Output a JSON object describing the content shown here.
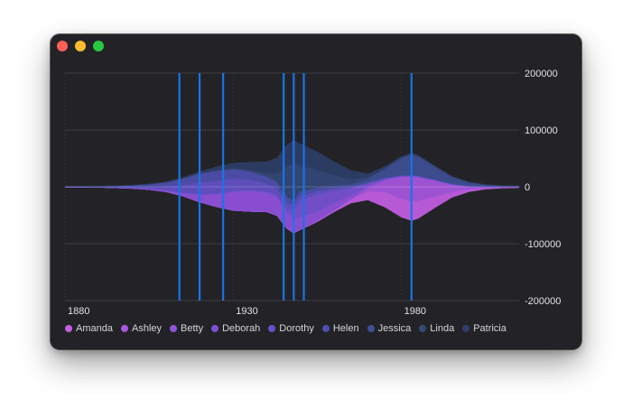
{
  "window": {
    "buttons": [
      "close",
      "minimize",
      "zoom"
    ]
  },
  "chart_data": {
    "type": "area",
    "subtype": "streamgraph",
    "x": [
      1880,
      1890,
      1900,
      1905,
      1910,
      1915,
      1920,
      1925,
      1930,
      1935,
      1940,
      1943,
      1946,
      1948,
      1950,
      1955,
      1960,
      1965,
      1970,
      1975,
      1980,
      1983,
      1985,
      1990,
      1995,
      2000,
      2005,
      2010,
      2015
    ],
    "ylim": [
      -200000,
      200000
    ],
    "xlim": [
      1880,
      2015
    ],
    "y_ticks": [
      "200000",
      "100000",
      "0",
      "-100000",
      "-200000"
    ],
    "y_tick_values": [
      200000,
      100000,
      0,
      -100000,
      -200000
    ],
    "x_ticks": [
      "1880",
      "1930",
      "1980"
    ],
    "x_tick_values": [
      1880,
      1930,
      1980
    ],
    "y_axis_position": "right",
    "grid": true,
    "legend_position": "bottom",
    "rules": [
      1914,
      1920,
      1927,
      1945,
      1948,
      1951,
      1983
    ],
    "rule_color": "#1a73e8",
    "series": [
      {
        "name": "Amanda",
        "color": "#c45de3",
        "values": [
          0,
          0,
          0,
          0,
          0,
          0,
          0,
          0,
          0,
          0,
          0,
          0,
          0,
          0,
          300,
          1500,
          2500,
          6000,
          15000,
          26000,
          32000,
          33000,
          30000,
          19000,
          9000,
          4000,
          1500,
          800,
          500
        ]
      },
      {
        "name": "Ashley",
        "color": "#a858e0",
        "values": [
          0,
          0,
          0,
          0,
          0,
          0,
          0,
          0,
          0,
          0,
          0,
          0,
          0,
          0,
          0,
          0,
          200,
          800,
          6000,
          20000,
          38000,
          44000,
          42000,
          28000,
          13000,
          5000,
          2000,
          800,
          500
        ]
      },
      {
        "name": "Betty",
        "color": "#9153dd",
        "values": [
          150,
          200,
          700,
          1400,
          2500,
          5500,
          13000,
          22000,
          33000,
          36000,
          33000,
          32000,
          28000,
          26000,
          22000,
          16000,
          12000,
          7000,
          3000,
          1800,
          1200,
          1000,
          900,
          700,
          500,
          400,
          300,
          250,
          200
        ]
      },
      {
        "name": "Deborah",
        "color": "#7a52d4",
        "values": [
          0,
          0,
          0,
          0,
          0,
          0,
          0,
          300,
          800,
          1500,
          3000,
          4000,
          6000,
          12000,
          28000,
          30000,
          22000,
          12000,
          4500,
          2000,
          1200,
          1000,
          900,
          700,
          500,
          400,
          300,
          250,
          200
        ]
      },
      {
        "name": "Dorothy",
        "color": "#6551c8",
        "values": [
          200,
          400,
          1500,
          3000,
          7000,
          14000,
          21000,
          23000,
          22000,
          18000,
          14000,
          12000,
          11000,
          10000,
          9000,
          6000,
          3500,
          2000,
          900,
          700,
          600,
          550,
          500,
          400,
          300,
          250,
          200,
          150,
          100
        ]
      },
      {
        "name": "Helen",
        "color": "#4f4fae",
        "values": [
          800,
          1200,
          3000,
          5000,
          7000,
          11000,
          16000,
          18000,
          17000,
          15000,
          12000,
          11000,
          10000,
          9000,
          8000,
          6000,
          4000,
          2500,
          1500,
          900,
          700,
          600,
          550,
          500,
          450,
          400,
          350,
          300,
          250
        ]
      },
      {
        "name": "Jessica",
        "color": "#3f4f95",
        "values": [
          50,
          50,
          100,
          100,
          150,
          150,
          200,
          200,
          300,
          300,
          400,
          400,
          600,
          700,
          800,
          1200,
          1800,
          3000,
          6000,
          15000,
          30000,
          36000,
          34000,
          22000,
          12000,
          6000,
          2500,
          1200,
          800
        ]
      },
      {
        "name": "Linda",
        "color": "#344877",
        "values": [
          50,
          50,
          100,
          100,
          150,
          200,
          300,
          600,
          1000,
          2000,
          6000,
          15000,
          54000,
          65000,
          45000,
          30000,
          18000,
          9000,
          3000,
          1500,
          1000,
          900,
          800,
          600,
          500,
          400,
          300,
          250,
          200
        ]
      },
      {
        "name": "Patricia",
        "color": "#2e3e67",
        "values": [
          100,
          100,
          200,
          400,
          800,
          1500,
          3000,
          6000,
          9000,
          14000,
          20000,
          27000,
          38000,
          40000,
          38000,
          32000,
          24000,
          15000,
          6000,
          3000,
          2000,
          1800,
          1600,
          1200,
          900,
          700,
          500,
          400,
          300
        ]
      }
    ]
  }
}
